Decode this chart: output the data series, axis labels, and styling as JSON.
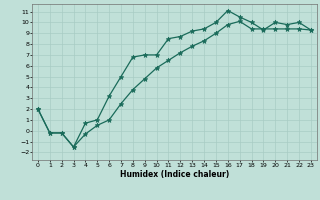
{
  "xlabel": "Humidex (Indice chaleur)",
  "background_color": "#c0e0d8",
  "grid_color": "#a8ccc4",
  "line_color": "#1a6b5a",
  "xlim": [
    -0.5,
    23.5
  ],
  "ylim": [
    -2.7,
    11.7
  ],
  "xticks": [
    0,
    1,
    2,
    3,
    4,
    5,
    6,
    7,
    8,
    9,
    10,
    11,
    12,
    13,
    14,
    15,
    16,
    17,
    18,
    19,
    20,
    21,
    22,
    23
  ],
  "yticks": [
    -2,
    -1,
    0,
    1,
    2,
    3,
    4,
    5,
    6,
    7,
    8,
    9,
    10,
    11
  ],
  "curve1_x": [
    0,
    1,
    2,
    3,
    4,
    5,
    6,
    7,
    8,
    9,
    10,
    11,
    12,
    13,
    14,
    15,
    16,
    17,
    18,
    19,
    20,
    21,
    22,
    23
  ],
  "curve1_y": [
    2.0,
    -0.2,
    -0.2,
    -1.5,
    0.7,
    1.0,
    3.2,
    5.0,
    6.8,
    7.0,
    7.0,
    8.5,
    8.7,
    9.2,
    9.4,
    10.0,
    11.1,
    10.5,
    10.0,
    9.3,
    10.0,
    9.8,
    10.0,
    9.3
  ],
  "curve2_x": [
    0,
    1,
    2,
    3,
    4,
    5,
    6,
    7,
    8,
    9,
    10,
    11,
    12,
    13,
    14,
    15,
    16,
    17,
    18,
    19,
    20,
    21,
    22,
    23
  ],
  "curve2_y": [
    2.0,
    -0.2,
    -0.2,
    -1.5,
    -0.3,
    0.5,
    1.0,
    2.5,
    3.8,
    4.8,
    5.8,
    6.5,
    7.2,
    7.8,
    8.3,
    9.0,
    9.8,
    10.1,
    9.4,
    9.4,
    9.4,
    9.4,
    9.4,
    9.3
  ]
}
